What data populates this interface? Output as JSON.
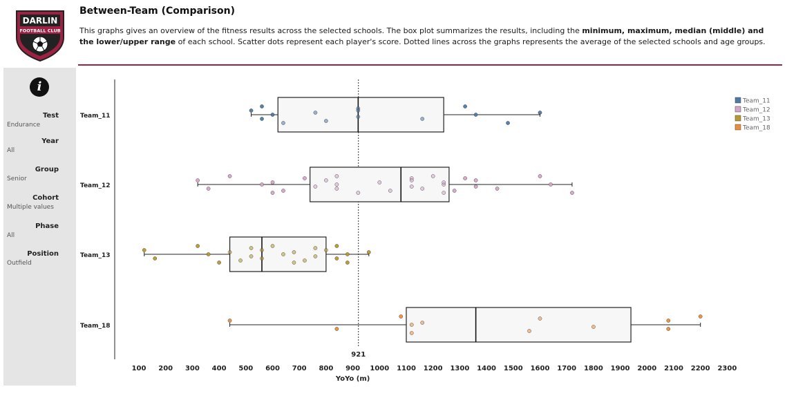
{
  "header": {
    "title": "Between-Team (Comparison)",
    "desc_1": "This graphs gives an overview of the fitness results across the selected schools. The box plot summarizes the results, including the ",
    "desc_bold_1": "minimum, maximum, median (middle) and the lower/upper range",
    "desc_2": " of each school. Scatter dots represent each player's score. Dotted lines across the graphs represents the average of the selected schools and age groups."
  },
  "logo": {
    "top_text": "DARLIN",
    "band_text": "FOOTBALL CLUB"
  },
  "filters": {
    "info_icon": "i",
    "items": [
      {
        "label": "Test",
        "value": "Endurance"
      },
      {
        "label": "Year",
        "value": "All"
      },
      {
        "label": "Group",
        "value": "Senior"
      },
      {
        "label": "Cohort",
        "value": "Multiple values"
      },
      {
        "label": "Phase",
        "value": "All"
      },
      {
        "label": "Position",
        "value": "Outfield"
      }
    ]
  },
  "colors": {
    "accent": "#9c2142",
    "panel": "#e5e5e5"
  },
  "chart_data": {
    "type": "boxplot",
    "xlabel": "YoYo (m)",
    "xlim": [
      100,
      2300
    ],
    "xticks": [
      100,
      200,
      300,
      400,
      500,
      600,
      700,
      800,
      900,
      1000,
      1100,
      1200,
      1300,
      1400,
      1500,
      1600,
      1700,
      1800,
      1900,
      2000,
      2100,
      2200,
      2300
    ],
    "reference_line": {
      "value": 921,
      "label": "921",
      "style": "dotted"
    },
    "legend": {
      "placement": "top-right"
    },
    "series": [
      {
        "name": "Team_11",
        "color": "#4e79a7",
        "min": 520,
        "q1": 620,
        "median": 920,
        "q3": 1240,
        "max": 1600,
        "points": [
          520,
          560,
          560,
          600,
          640,
          760,
          800,
          920,
          920,
          920,
          1160,
          1320,
          1360,
          1480,
          1600
        ]
      },
      {
        "name": "Team_12",
        "color": "#d4a6c8",
        "min": 320,
        "q1": 740,
        "median": 1080,
        "q3": 1260,
        "max": 1720,
        "points": [
          320,
          360,
          440,
          560,
          600,
          600,
          640,
          720,
          760,
          800,
          840,
          840,
          840,
          920,
          1000,
          1040,
          1120,
          1120,
          1120,
          1160,
          1200,
          1240,
          1240,
          1240,
          1280,
          1320,
          1360,
          1360,
          1440,
          1600,
          1640,
          1720
        ]
      },
      {
        "name": "Team_13",
        "color": "#b6992d",
        "min": 120,
        "q1": 440,
        "median": 560,
        "q3": 800,
        "max": 960,
        "points": [
          120,
          160,
          320,
          360,
          400,
          440,
          480,
          520,
          520,
          560,
          560,
          600,
          640,
          680,
          680,
          720,
          760,
          760,
          800,
          840,
          840,
          880,
          880,
          960
        ]
      },
      {
        "name": "Team_18",
        "color": "#e8903e",
        "min": 440,
        "q1": 1100,
        "median": 1360,
        "q3": 1940,
        "max": 2200,
        "points": [
          440,
          840,
          1080,
          1120,
          1120,
          1160,
          1560,
          1600,
          1800,
          2080,
          2080,
          2200
        ]
      }
    ]
  }
}
